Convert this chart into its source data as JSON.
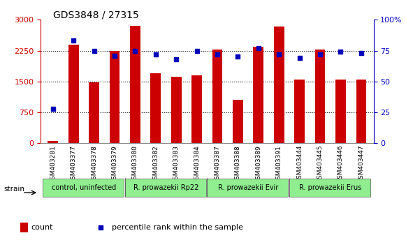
{
  "title": "GDS3848 / 27315",
  "samples": [
    "GSM403281",
    "GSM403377",
    "GSM403378",
    "GSM403379",
    "GSM403380",
    "GSM403382",
    "GSM403383",
    "GSM403384",
    "GSM403387",
    "GSM403388",
    "GSM403389",
    "GSM403391",
    "GSM403444",
    "GSM403445",
    "GSM403446",
    "GSM403447"
  ],
  "counts": [
    50,
    2400,
    1480,
    2250,
    2850,
    1700,
    1620,
    1650,
    2270,
    1050,
    2350,
    2830,
    1550,
    2270,
    1540,
    1540
  ],
  "percentiles": [
    28,
    83,
    75,
    71,
    75,
    72,
    68,
    75,
    72,
    70,
    77,
    72,
    69,
    72,
    74,
    73
  ],
  "ylim_left": [
    0,
    3000
  ],
  "ylim_right": [
    0,
    100
  ],
  "yticks_left": [
    0,
    750,
    1500,
    2250,
    3000
  ],
  "yticks_right": [
    0,
    25,
    50,
    75,
    100
  ],
  "bar_color": "#cc0000",
  "dot_color": "#0000bb",
  "left_axis_color": "#cc0000",
  "right_axis_color": "#0000bb",
  "groups": [
    {
      "label": "control, uninfected",
      "start": 0,
      "end": 4,
      "color": "#90ee90"
    },
    {
      "label": "R. prowazekii Rp22",
      "start": 4,
      "end": 8,
      "color": "#90ee90"
    },
    {
      "label": "R. prowazekii Evir",
      "start": 8,
      "end": 12,
      "color": "#90ee90"
    },
    {
      "label": "R. prowazekii Erus",
      "start": 12,
      "end": 16,
      "color": "#90ee90"
    }
  ],
  "strain_label": "strain",
  "legend_count_label": "count",
  "legend_pct_label": "percentile rank within the sample"
}
